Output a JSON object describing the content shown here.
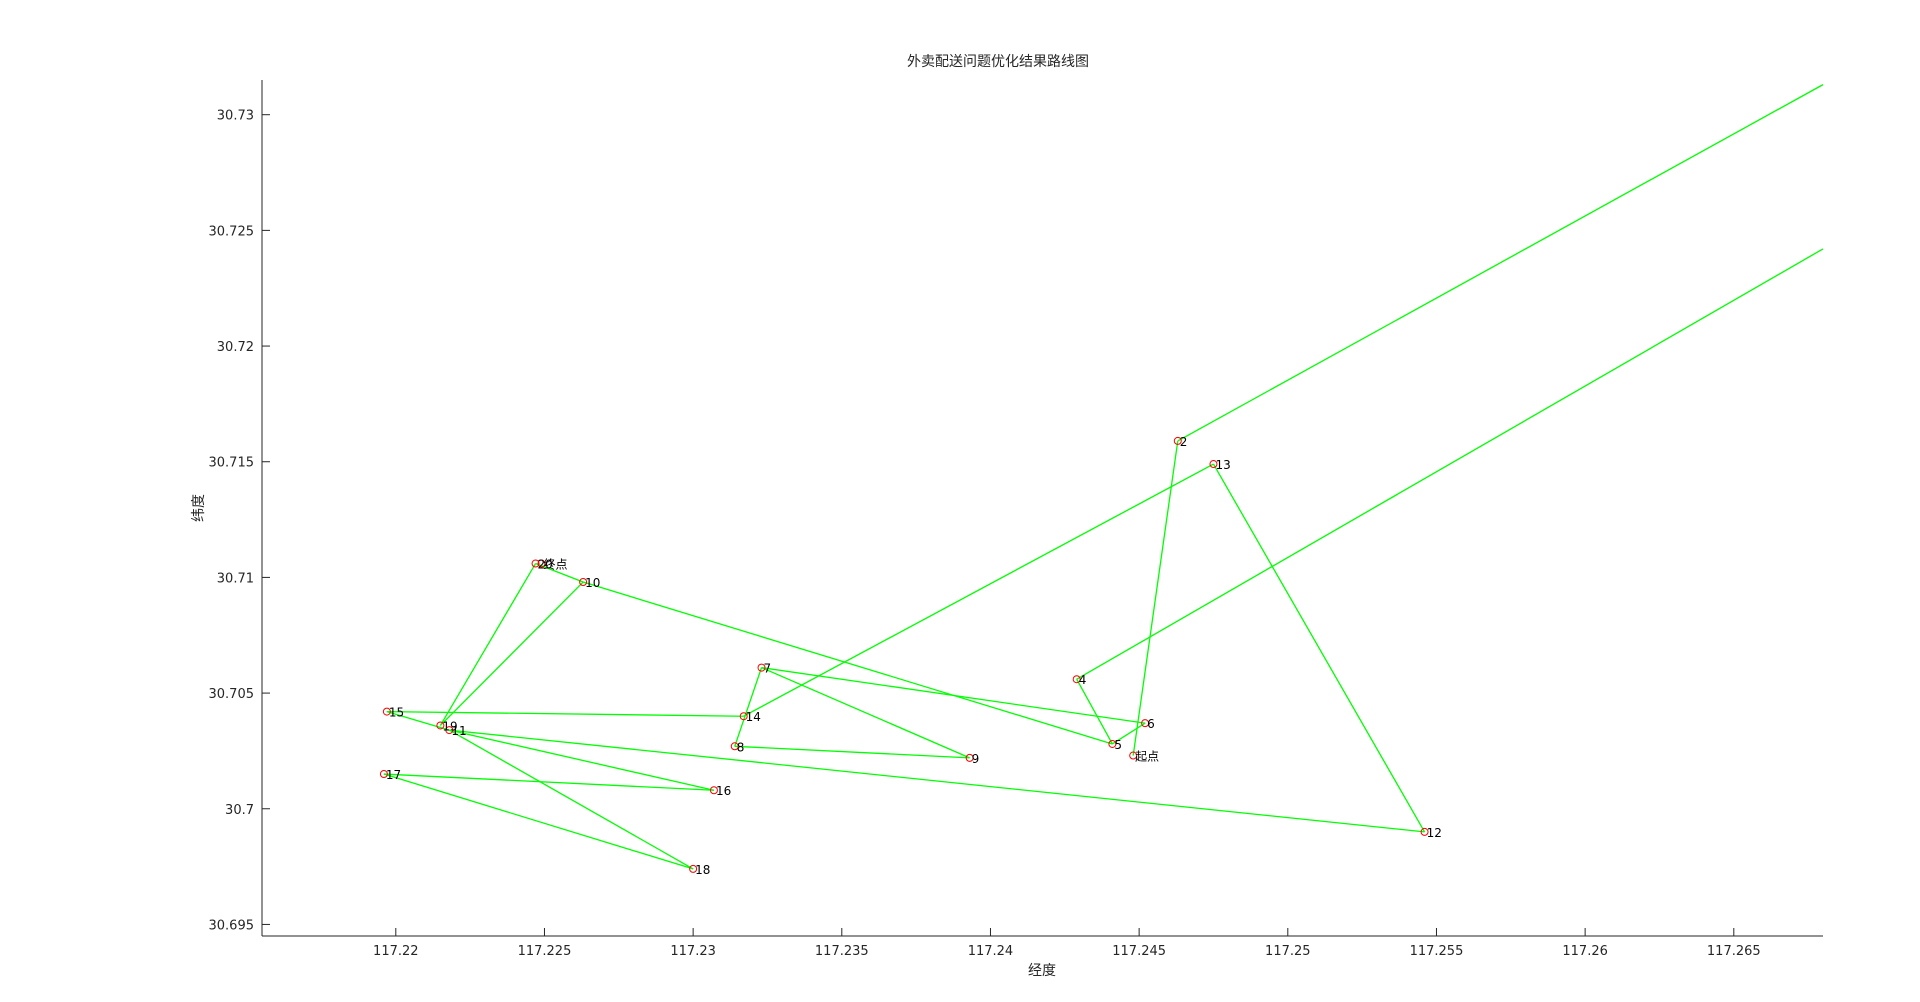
{
  "chart_data": {
    "type": "line",
    "title": "外卖配送问题优化结果路线图",
    "xlabel": "经度",
    "ylabel": "纬度",
    "xlim": [
      117.2155,
      117.268
    ],
    "ylim": [
      30.6945,
      30.7315
    ],
    "xticks": [
      117.22,
      117.225,
      117.23,
      117.235,
      117.24,
      117.245,
      117.25,
      117.255,
      117.26,
      117.265
    ],
    "yticks": [
      30.695,
      30.7,
      30.705,
      30.71,
      30.715,
      30.72,
      30.725,
      30.73
    ],
    "xtick_labels": [
      "117.22",
      "117.225",
      "117.23",
      "117.235",
      "117.24",
      "117.245",
      "117.25",
      "117.255",
      "117.26",
      "117.265"
    ],
    "ytick_labels": [
      "30.695",
      "30.7",
      "30.705",
      "30.71",
      "30.715",
      "30.72",
      "30.725",
      "30.73"
    ],
    "grid": false,
    "legend": "none",
    "route_color": "#00ff00",
    "marker_color": "#ff0000",
    "points": [
      {
        "label": "起点",
        "x": 117.2448,
        "y": 30.7023
      },
      {
        "label": "2",
        "x": 117.2463,
        "y": 30.7159
      },
      {
        "label": "4",
        "x": 117.2429,
        "y": 30.7056
      },
      {
        "label": "5",
        "x": 117.2441,
        "y": 30.7028
      },
      {
        "label": "6",
        "x": 117.2452,
        "y": 30.7037
      },
      {
        "label": "7",
        "x": 117.2323,
        "y": 30.7061
      },
      {
        "label": "8",
        "x": 117.2314,
        "y": 30.7027
      },
      {
        "label": "9",
        "x": 117.2393,
        "y": 30.7022
      },
      {
        "label": "10",
        "x": 117.2263,
        "y": 30.7098
      },
      {
        "label": "11",
        "x": 117.2218,
        "y": 30.7034
      },
      {
        "label": "12",
        "x": 117.2546,
        "y": 30.699
      },
      {
        "label": "13",
        "x": 117.2475,
        "y": 30.7149
      },
      {
        "label": "14",
        "x": 117.2317,
        "y": 30.704
      },
      {
        "label": "15",
        "x": 117.2197,
        "y": 30.7042
      },
      {
        "label": "16",
        "x": 117.2307,
        "y": 30.7008
      },
      {
        "label": "17",
        "x": 117.2196,
        "y": 30.7015
      },
      {
        "label": "18",
        "x": 117.23,
        "y": 30.6974
      },
      {
        "label": "19",
        "x": 117.2215,
        "y": 30.7036
      },
      {
        "label": "20",
        "x": 117.2247,
        "y": 30.7106
      },
      {
        "label": "终点",
        "x": 117.2249,
        "y": 30.7106
      }
    ],
    "segments": [
      [
        [
          117.2448,
          30.7023
        ],
        [
          117.2463,
          30.7159
        ]
      ],
      [
        [
          117.2463,
          30.7159
        ],
        [
          117.268,
          30.7313
        ]
      ],
      [
        [
          117.268,
          30.7242
        ],
        [
          117.2429,
          30.7056
        ]
      ],
      [
        [
          117.2429,
          30.7056
        ],
        [
          117.2441,
          30.7028
        ]
      ],
      [
        [
          117.2441,
          30.7028
        ],
        [
          117.2452,
          30.7037
        ]
      ],
      [
        [
          117.2452,
          30.7037
        ],
        [
          117.2323,
          30.7061
        ]
      ],
      [
        [
          117.2323,
          30.7061
        ],
        [
          117.2393,
          30.7022
        ]
      ],
      [
        [
          117.2393,
          30.7022
        ],
        [
          117.2314,
          30.7027
        ]
      ],
      [
        [
          117.2314,
          30.7027
        ],
        [
          117.2323,
          30.7061
        ]
      ],
      [
        [
          117.2441,
          30.7028
        ],
        [
          117.2263,
          30.7098
        ]
      ],
      [
        [
          117.2263,
          30.7098
        ],
        [
          117.2247,
          30.7106
        ]
      ],
      [
        [
          117.2247,
          30.7106
        ],
        [
          117.2215,
          30.7036
        ]
      ],
      [
        [
          117.2215,
          30.7036
        ],
        [
          117.2263,
          30.7098
        ]
      ],
      [
        [
          117.2218,
          30.7034
        ],
        [
          117.2546,
          30.699
        ]
      ],
      [
        [
          117.2546,
          30.699
        ],
        [
          117.2475,
          30.7149
        ]
      ],
      [
        [
          117.2475,
          30.7149
        ],
        [
          117.2317,
          30.704
        ]
      ],
      [
        [
          117.2317,
          30.704
        ],
        [
          117.2197,
          30.7042
        ]
      ],
      [
        [
          117.2197,
          30.7042
        ],
        [
          117.2218,
          30.7034
        ]
      ],
      [
        [
          117.2218,
          30.7034
        ],
        [
          117.2307,
          30.7008
        ]
      ],
      [
        [
          117.2307,
          30.7008
        ],
        [
          117.2196,
          30.7015
        ]
      ],
      [
        [
          117.2196,
          30.7015
        ],
        [
          117.23,
          30.6974
        ]
      ],
      [
        [
          117.23,
          30.6974
        ],
        [
          117.2218,
          30.7034
        ]
      ]
    ]
  }
}
